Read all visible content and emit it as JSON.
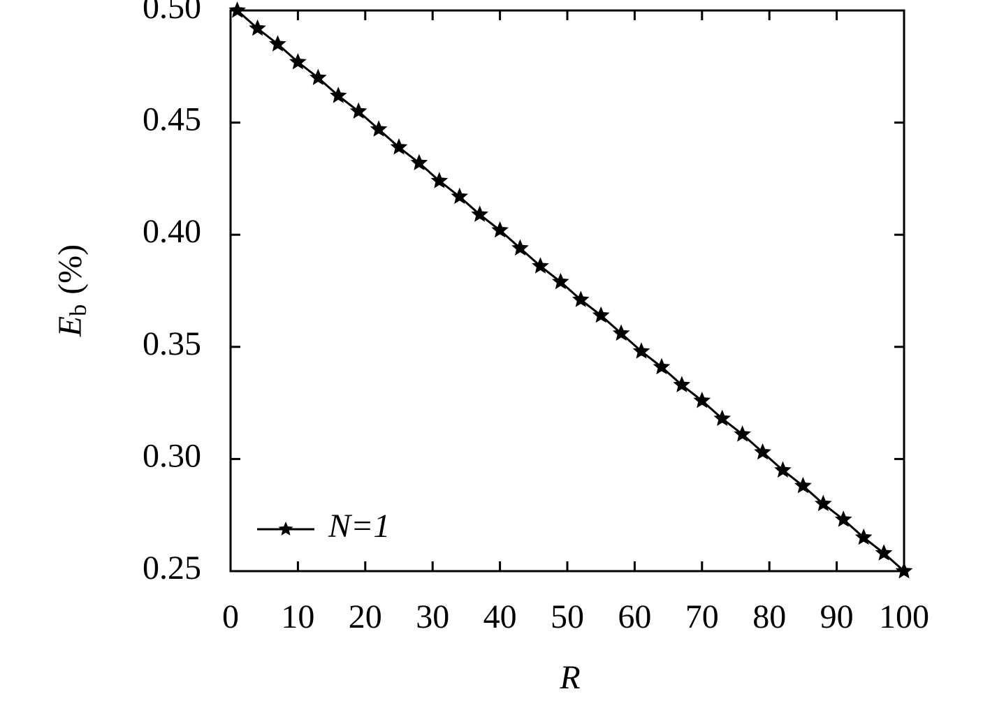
{
  "chart_data": {
    "type": "line",
    "x_label": "R",
    "y_label": {
      "symbol": "E",
      "subscript": "b",
      "unit": "(%)"
    },
    "x": [
      1,
      4,
      7,
      10,
      13,
      16,
      19,
      22,
      25,
      28,
      31,
      34,
      37,
      40,
      43,
      46,
      49,
      52,
      55,
      58,
      61,
      64,
      67,
      70,
      73,
      76,
      79,
      82,
      85,
      88,
      91,
      94,
      97,
      100
    ],
    "series": [
      {
        "name": "N=1",
        "color": "#000000",
        "marker": "star",
        "values": [
          0.5,
          0.492,
          0.485,
          0.477,
          0.47,
          0.462,
          0.455,
          0.447,
          0.439,
          0.432,
          0.424,
          0.417,
          0.409,
          0.402,
          0.394,
          0.386,
          0.379,
          0.371,
          0.364,
          0.356,
          0.348,
          0.341,
          0.333,
          0.326,
          0.318,
          0.311,
          0.303,
          0.295,
          0.288,
          0.28,
          0.273,
          0.265,
          0.258,
          0.25
        ]
      }
    ],
    "xlim": [
      0,
      100
    ],
    "xticks": [
      0,
      10,
      20,
      30,
      40,
      50,
      60,
      70,
      80,
      90,
      100
    ],
    "ylim": [
      0.25,
      0.5
    ],
    "yticks": [
      {
        "value": 0.25,
        "label": "0.25"
      },
      {
        "value": 0.3,
        "label": "0.30"
      },
      0.35,
      {
        "value": 0.4,
        "label": "0.40"
      },
      0.45,
      {
        "value": 0.5,
        "label": "0.50"
      }
    ],
    "legend": "lower left",
    "grid": false
  }
}
